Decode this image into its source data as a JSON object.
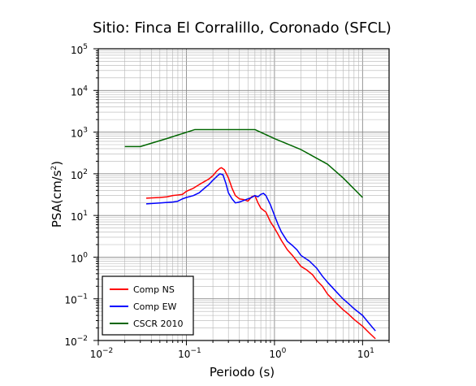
{
  "chart_data": {
    "type": "line",
    "title": "Sitio: Finca El Corralillo, Coronado (SFCL)",
    "xlabel": "Periodo (s)",
    "ylabel": {
      "base": "PSA(cm/s",
      "sup": "2",
      "tail": ")"
    },
    "xscale": "log",
    "yscale": "log",
    "xlim": [
      0.01,
      20
    ],
    "ylim": [
      0.01,
      100000
    ],
    "grid": true,
    "legend_position": "bottom-left",
    "x_ticks": [
      {
        "base": "10",
        "exp": "−2",
        "value": 0.01
      },
      {
        "base": "10",
        "exp": "−1",
        "value": 0.1
      },
      {
        "base": "10",
        "exp": "0",
        "value": 1
      },
      {
        "base": "10",
        "exp": "1",
        "value": 10
      }
    ],
    "y_ticks": [
      {
        "base": "10",
        "exp": "−2",
        "value": 0.01
      },
      {
        "base": "10",
        "exp": "−1",
        "value": 0.1
      },
      {
        "base": "10",
        "exp": "0",
        "value": 1
      },
      {
        "base": "10",
        "exp": "1",
        "value": 10
      },
      {
        "base": "10",
        "exp": "2",
        "value": 100
      },
      {
        "base": "10",
        "exp": "3",
        "value": 1000
      },
      {
        "base": "10",
        "exp": "4",
        "value": 10000
      },
      {
        "base": "10",
        "exp": "5",
        "value": 100000
      }
    ],
    "series": [
      {
        "name": "Comp NS",
        "color": "#ff0000",
        "points": [
          [
            0.035,
            26
          ],
          [
            0.05,
            27
          ],
          [
            0.06,
            28
          ],
          [
            0.07,
            30
          ],
          [
            0.08,
            31
          ],
          [
            0.09,
            32
          ],
          [
            0.1,
            38
          ],
          [
            0.12,
            45
          ],
          [
            0.14,
            55
          ],
          [
            0.16,
            65
          ],
          [
            0.18,
            75
          ],
          [
            0.2,
            90
          ],
          [
            0.22,
            115
          ],
          [
            0.24,
            135
          ],
          [
            0.25,
            140
          ],
          [
            0.27,
            125
          ],
          [
            0.3,
            80
          ],
          [
            0.33,
            45
          ],
          [
            0.36,
            30
          ],
          [
            0.4,
            25
          ],
          [
            0.45,
            24
          ],
          [
            0.5,
            22
          ],
          [
            0.55,
            28
          ],
          [
            0.6,
            30
          ],
          [
            0.65,
            20
          ],
          [
            0.7,
            15
          ],
          [
            0.8,
            12
          ],
          [
            0.9,
            7
          ],
          [
            1.0,
            5
          ],
          [
            1.1,
            3.5
          ],
          [
            1.2,
            2.5
          ],
          [
            1.4,
            1.5
          ],
          [
            1.6,
            1.1
          ],
          [
            1.8,
            0.8
          ],
          [
            2.0,
            0.6
          ],
          [
            2.3,
            0.5
          ],
          [
            2.7,
            0.38
          ],
          [
            3.0,
            0.28
          ],
          [
            3.5,
            0.2
          ],
          [
            4.0,
            0.13
          ],
          [
            5.0,
            0.08
          ],
          [
            6.0,
            0.055
          ],
          [
            7.0,
            0.042
          ],
          [
            8.0,
            0.032
          ],
          [
            10.0,
            0.022
          ],
          [
            12.0,
            0.015
          ],
          [
            14.0,
            0.011
          ]
        ]
      },
      {
        "name": "Comp EW",
        "color": "#0000ff",
        "points": [
          [
            0.035,
            19
          ],
          [
            0.05,
            20
          ],
          [
            0.07,
            21
          ],
          [
            0.08,
            22
          ],
          [
            0.09,
            25
          ],
          [
            0.1,
            27
          ],
          [
            0.12,
            30
          ],
          [
            0.14,
            35
          ],
          [
            0.16,
            45
          ],
          [
            0.18,
            55
          ],
          [
            0.2,
            70
          ],
          [
            0.22,
            85
          ],
          [
            0.24,
            100
          ],
          [
            0.26,
            95
          ],
          [
            0.28,
            60
          ],
          [
            0.3,
            35
          ],
          [
            0.33,
            25
          ],
          [
            0.36,
            20
          ],
          [
            0.4,
            21
          ],
          [
            0.45,
            23
          ],
          [
            0.5,
            25
          ],
          [
            0.55,
            27
          ],
          [
            0.6,
            30
          ],
          [
            0.65,
            28
          ],
          [
            0.7,
            32
          ],
          [
            0.75,
            34
          ],
          [
            0.8,
            30
          ],
          [
            0.9,
            18
          ],
          [
            1.0,
            10
          ],
          [
            1.1,
            6
          ],
          [
            1.2,
            4
          ],
          [
            1.4,
            2.4
          ],
          [
            1.6,
            1.9
          ],
          [
            1.8,
            1.5
          ],
          [
            2.0,
            1.1
          ],
          [
            2.5,
            0.8
          ],
          [
            3.0,
            0.55
          ],
          [
            3.5,
            0.35
          ],
          [
            4.0,
            0.25
          ],
          [
            5.0,
            0.15
          ],
          [
            6.0,
            0.1
          ],
          [
            7.0,
            0.075
          ],
          [
            8.0,
            0.058
          ],
          [
            10.0,
            0.04
          ],
          [
            12.0,
            0.025
          ],
          [
            14.0,
            0.017
          ]
        ]
      },
      {
        "name": "CSCR 2010",
        "color": "#006600",
        "points": [
          [
            0.02,
            450
          ],
          [
            0.03,
            450
          ],
          [
            0.06,
            700
          ],
          [
            0.125,
            1150
          ],
          [
            0.6,
            1150
          ],
          [
            1.0,
            700
          ],
          [
            2.0,
            380
          ],
          [
            4.0,
            170
          ],
          [
            6.0,
            80
          ],
          [
            10.0,
            27
          ]
        ]
      }
    ]
  }
}
